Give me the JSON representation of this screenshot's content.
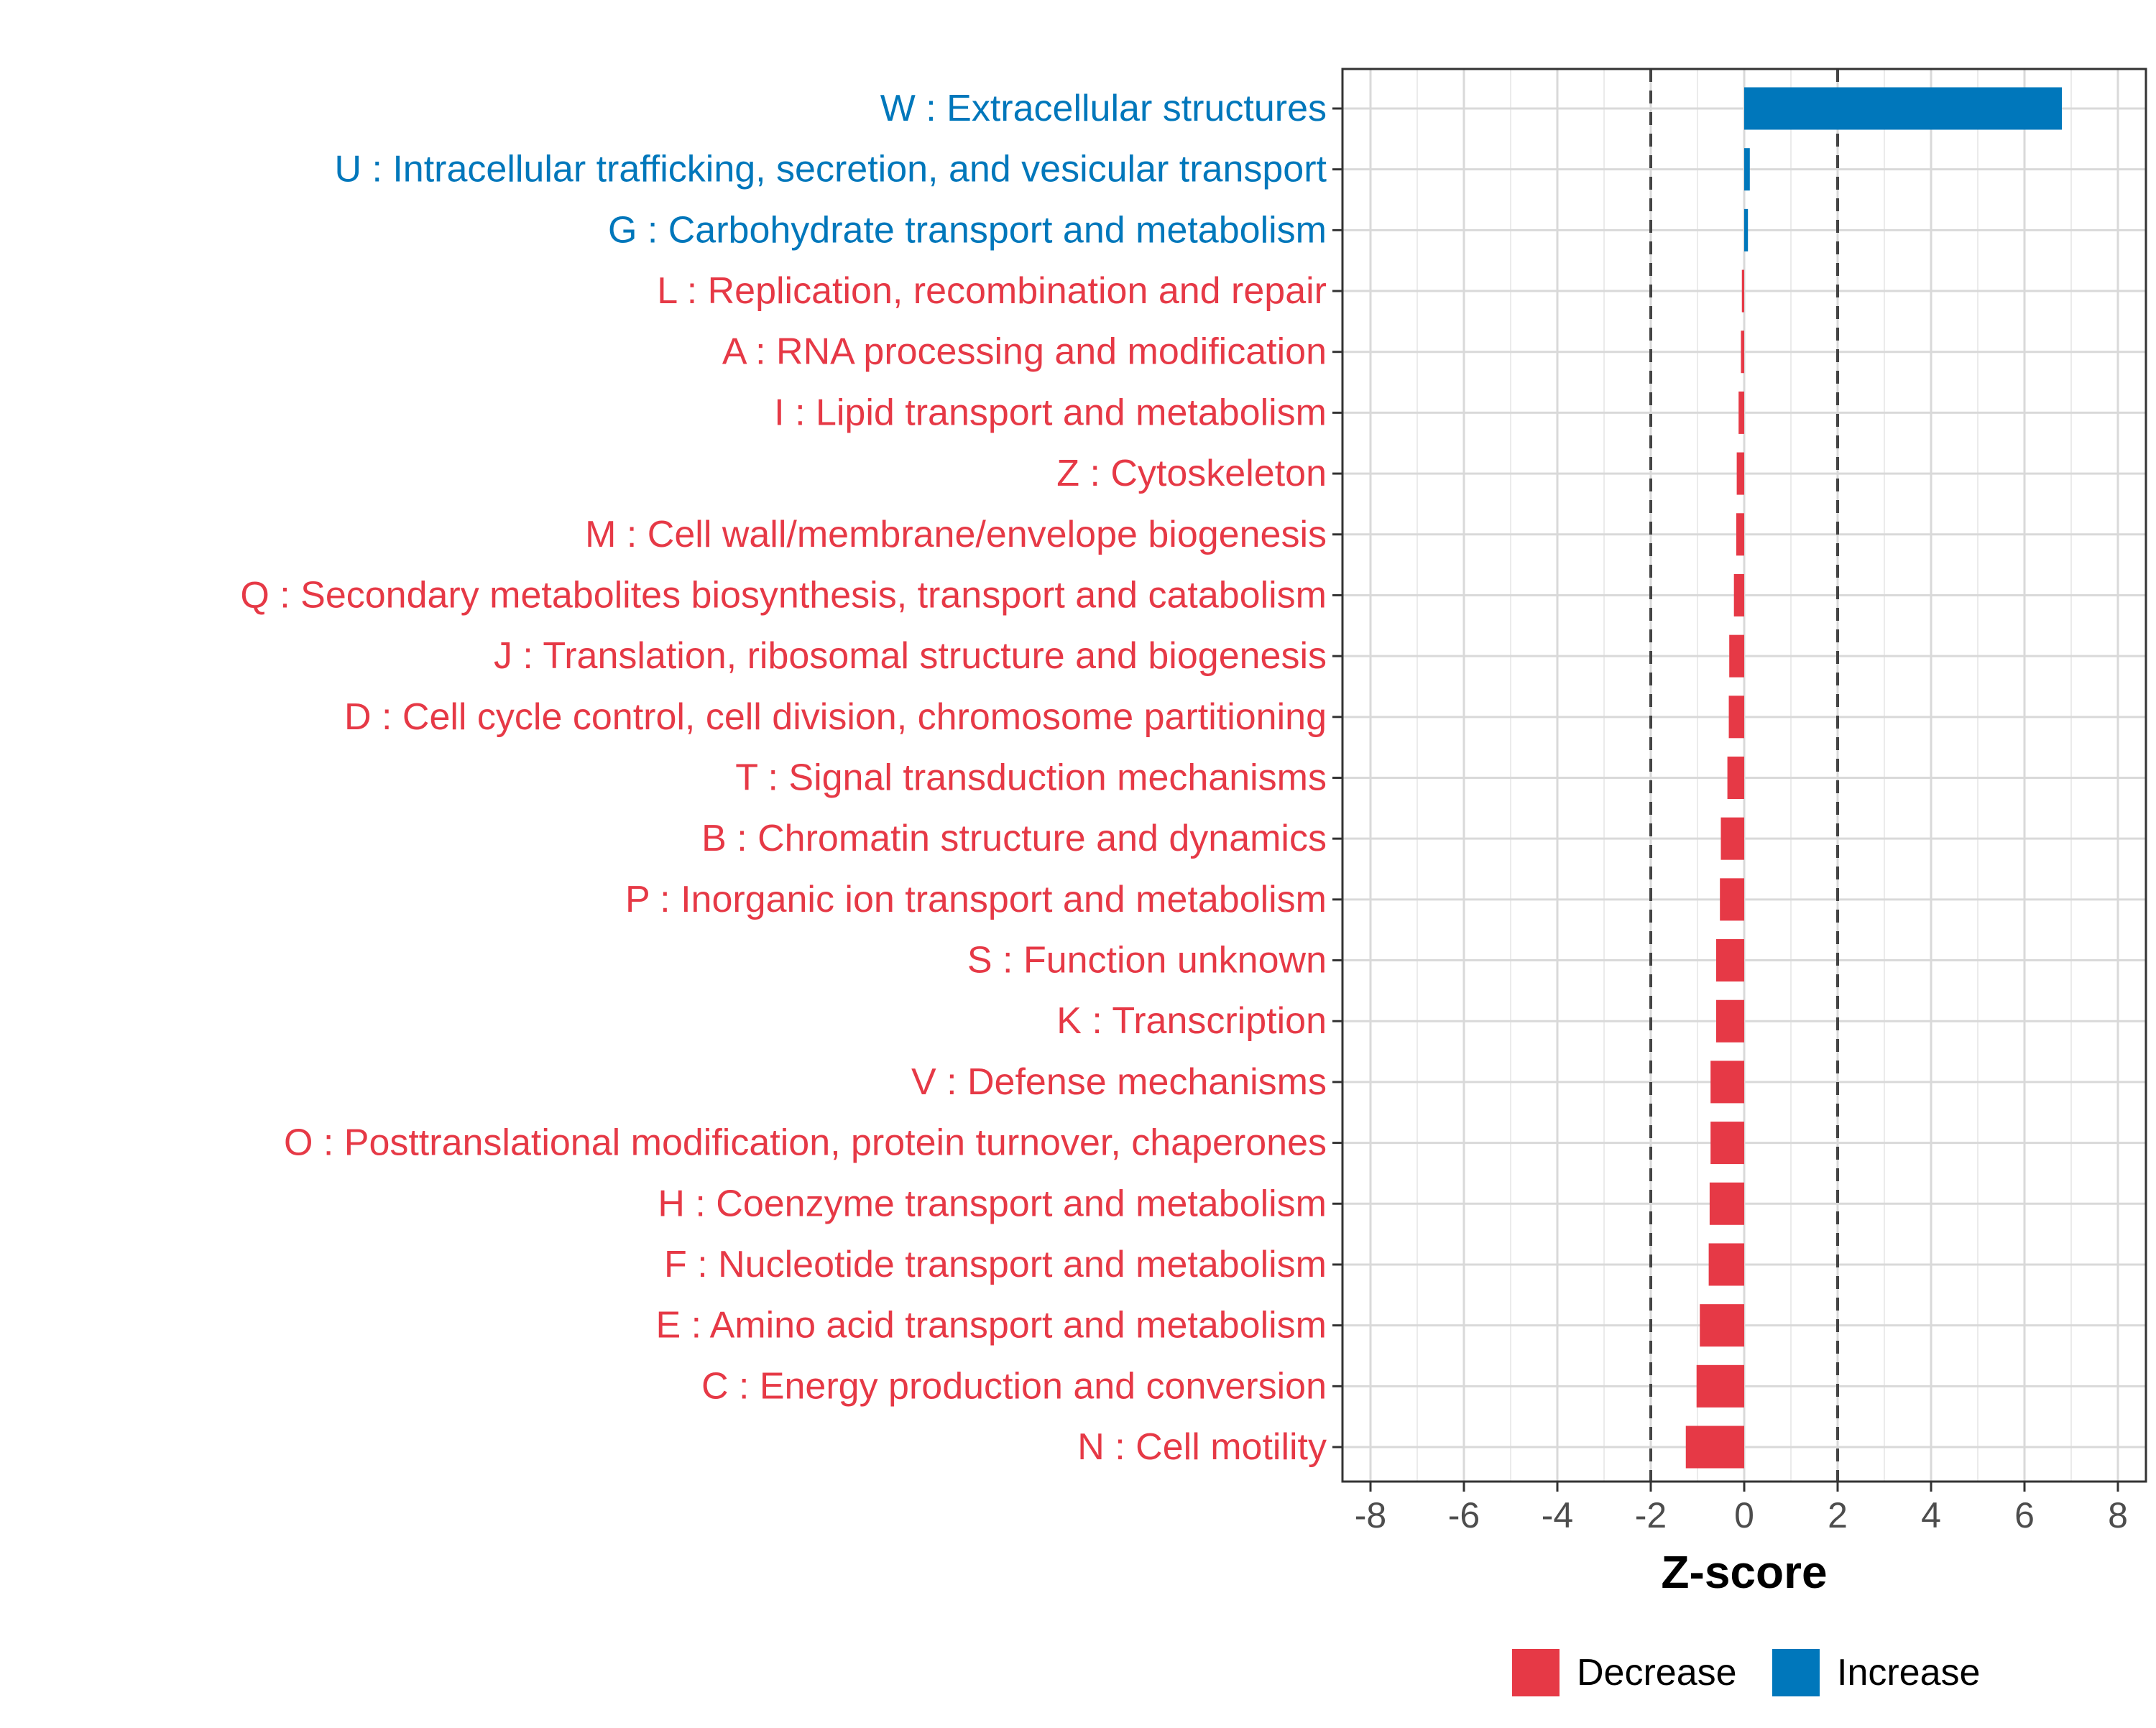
{
  "chart_data": {
    "type": "bar",
    "orientation": "horizontal",
    "title": "",
    "xlabel": "Z-score",
    "ylabel": "",
    "xlim": [
      -8.6,
      8.6
    ],
    "xticks": [
      -8,
      -6,
      -4,
      -2,
      0,
      2,
      4,
      6,
      8
    ],
    "tick_labels": [
      "-8",
      "-6",
      "-4",
      "-2",
      "0",
      "2",
      "4",
      "6",
      "8"
    ],
    "reference_lines": [
      -2,
      2
    ],
    "grid": true,
    "legend_position": "bottom",
    "colors": {
      "Decrease": "#E63946",
      "Increase": "#0077BB"
    },
    "legend": [
      {
        "label": "Decrease",
        "color": "#E63946"
      },
      {
        "label": "Increase",
        "color": "#0077BB"
      }
    ],
    "categories": [
      "W : Extracellular structures",
      "U : Intracellular trafficking, secretion, and vesicular transport",
      "G : Carbohydrate transport and metabolism",
      "L : Replication, recombination and repair",
      "A : RNA processing and modification",
      "I : Lipid transport and metabolism",
      "Z : Cytoskeleton",
      "M : Cell wall/membrane/envelope biogenesis",
      "Q : Secondary metabolites biosynthesis, transport and catabolism",
      "J : Translation, ribosomal structure and biogenesis",
      "D : Cell cycle control, cell division, chromosome partitioning",
      "T : Signal transduction mechanisms",
      "B : Chromatin structure and dynamics",
      "P : Inorganic ion transport and metabolism",
      "S : Function unknown",
      "K : Transcription",
      "V : Defense mechanisms",
      "O : Posttranslational modification, protein turnover, chaperones",
      "H : Coenzyme transport and metabolism",
      "F : Nucleotide transport and metabolism",
      "E : Amino acid transport and metabolism",
      "C : Energy production and conversion",
      "N : Cell motility"
    ],
    "values": [
      6.8,
      0.12,
      0.08,
      -0.05,
      -0.07,
      -0.12,
      -0.16,
      -0.17,
      -0.22,
      -0.32,
      -0.33,
      -0.36,
      -0.5,
      -0.52,
      -0.6,
      -0.6,
      -0.72,
      -0.72,
      -0.74,
      -0.76,
      -0.95,
      -1.02,
      -1.25
    ],
    "groups": [
      "Increase",
      "Increase",
      "Increase",
      "Decrease",
      "Decrease",
      "Decrease",
      "Decrease",
      "Decrease",
      "Decrease",
      "Decrease",
      "Decrease",
      "Decrease",
      "Decrease",
      "Decrease",
      "Decrease",
      "Decrease",
      "Decrease",
      "Decrease",
      "Decrease",
      "Decrease",
      "Decrease",
      "Decrease",
      "Decrease"
    ]
  }
}
